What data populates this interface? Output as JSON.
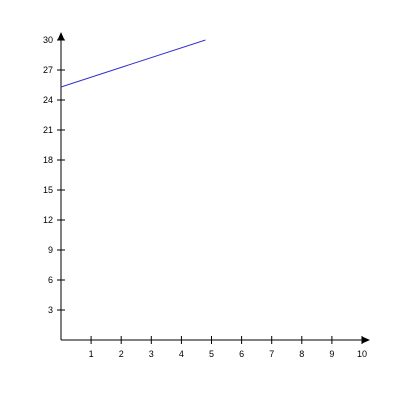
{
  "chart_data": {
    "type": "line",
    "title": "",
    "xlabel": "",
    "ylabel": "",
    "xlim": [
      0,
      10
    ],
    "ylim": [
      0,
      30
    ],
    "x_ticks": [
      1,
      2,
      3,
      4,
      5,
      6,
      7,
      8,
      9,
      10
    ],
    "y_ticks": [
      3,
      6,
      9,
      12,
      15,
      18,
      21,
      24,
      27,
      30
    ],
    "grid": false,
    "legend": "none",
    "series": [
      {
        "x": [
          0,
          4.8
        ],
        "y": [
          25.3,
          30
        ],
        "color": "#3333cc"
      }
    ]
  }
}
